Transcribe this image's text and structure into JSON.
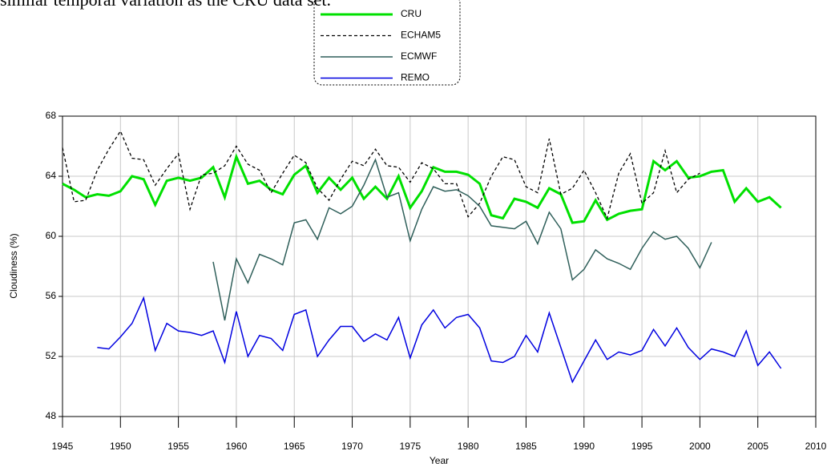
{
  "caption": "similar temporal variation as the CRU data set.",
  "chart_data": {
    "type": "line",
    "x_label": "Year",
    "y_label": "Cloudiness (%)",
    "x": [
      1945,
      1946,
      1947,
      1948,
      1949,
      1950,
      1951,
      1952,
      1953,
      1954,
      1955,
      1956,
      1957,
      1958,
      1959,
      1960,
      1961,
      1962,
      1963,
      1964,
      1965,
      1966,
      1967,
      1968,
      1969,
      1970,
      1971,
      1972,
      1973,
      1974,
      1975,
      1976,
      1977,
      1978,
      1979,
      1980,
      1981,
      1982,
      1983,
      1984,
      1985,
      1986,
      1987,
      1988,
      1989,
      1990,
      1991,
      1992,
      1993,
      1994,
      1995,
      1996,
      1997,
      1998,
      1999,
      2000,
      2001,
      2002,
      2003,
      2004,
      2005,
      2006,
      2007
    ],
    "series": [
      {
        "name": "CRU",
        "color": "#00e000",
        "width": 3,
        "dashed": false,
        "values": [
          63.5,
          63.1,
          62.6,
          62.8,
          62.7,
          63.0,
          64.0,
          63.8,
          62.1,
          63.7,
          63.9,
          63.7,
          63.9,
          64.6,
          62.6,
          65.3,
          63.5,
          63.7,
          63.1,
          62.8,
          64.1,
          64.7,
          62.9,
          63.9,
          63.1,
          63.9,
          62.5,
          63.3,
          62.5,
          64.0,
          61.9,
          63.0,
          64.6,
          64.3,
          64.3,
          64.1,
          63.5,
          61.4,
          61.2,
          62.5,
          62.3,
          61.9,
          63.2,
          62.8,
          60.9,
          61.0,
          62.4,
          61.1,
          61.5,
          61.7,
          61.8,
          65.0,
          64.4,
          65.0,
          63.9,
          64.0,
          64.3,
          64.4,
          62.3,
          63.2,
          62.3,
          62.6,
          61.9
        ]
      },
      {
        "name": "ECHAM5",
        "color": "#000000",
        "width": 1.3,
        "dashed": true,
        "values": [
          65.9,
          62.3,
          62.4,
          64.4,
          65.8,
          67.0,
          65.2,
          65.1,
          63.4,
          64.5,
          65.5,
          61.8,
          64.1,
          64.2,
          64.7,
          66.0,
          64.8,
          64.4,
          62.9,
          64.2,
          65.4,
          64.9,
          63.2,
          62.4,
          63.8,
          65.0,
          64.7,
          65.8,
          64.7,
          64.6,
          63.6,
          64.9,
          64.5,
          63.5,
          63.5,
          61.3,
          62.2,
          64.0,
          65.3,
          65.1,
          63.3,
          62.9,
          66.5,
          62.8,
          63.2,
          64.4,
          62.9,
          61.2,
          64.2,
          65.5,
          62.2,
          62.9,
          65.7,
          62.9,
          63.8,
          64.2,
          null,
          null,
          null,
          null,
          null,
          null,
          null
        ]
      },
      {
        "name": "ECMWF",
        "color": "#2f5f5a",
        "width": 1.5,
        "dashed": false,
        "values": [
          null,
          null,
          null,
          null,
          null,
          null,
          null,
          null,
          null,
          null,
          null,
          null,
          null,
          58.3,
          54.4,
          58.5,
          56.9,
          58.8,
          58.5,
          58.1,
          60.9,
          61.1,
          59.8,
          61.9,
          61.5,
          62.0,
          63.4,
          65.1,
          62.6,
          62.9,
          59.7,
          61.8,
          63.3,
          63.0,
          63.1,
          62.7,
          62.0,
          60.7,
          60.6,
          60.5,
          61.0,
          59.5,
          61.6,
          60.5,
          57.1,
          57.8,
          59.1,
          58.5,
          58.2,
          57.8,
          59.2,
          60.3,
          59.8,
          60.0,
          59.2,
          57.9,
          59.6,
          null,
          null,
          null,
          null,
          null,
          null
        ]
      },
      {
        "name": "REMO",
        "color": "#0000e0",
        "width": 1.5,
        "dashed": false,
        "values": [
          null,
          null,
          null,
          52.6,
          52.5,
          53.3,
          54.2,
          55.9,
          52.4,
          54.2,
          53.7,
          53.6,
          53.4,
          53.7,
          51.6,
          55.0,
          52.0,
          53.4,
          53.2,
          52.4,
          54.8,
          55.1,
          52.0,
          53.1,
          54.0,
          54.0,
          53.0,
          53.5,
          53.1,
          54.6,
          51.9,
          54.1,
          55.1,
          53.9,
          54.6,
          54.8,
          53.9,
          51.7,
          51.6,
          52.0,
          53.4,
          52.3,
          54.9,
          52.6,
          50.3,
          51.7,
          53.1,
          51.8,
          52.3,
          52.1,
          52.4,
          53.8,
          52.7,
          53.9,
          52.6,
          51.8,
          52.5,
          52.3,
          52.0,
          53.7,
          51.4,
          52.3,
          51.2
        ]
      }
    ],
    "xlim": [
      1945,
      2010
    ],
    "xticks": [
      1945,
      1950,
      1955,
      1960,
      1965,
      1970,
      1975,
      1980,
      1985,
      1990,
      1995,
      2000,
      2005,
      2010
    ],
    "ylim": [
      48,
      68
    ],
    "yticks": [
      48,
      52,
      56,
      60,
      64,
      68
    ],
    "grid": true,
    "legend": "top"
  }
}
